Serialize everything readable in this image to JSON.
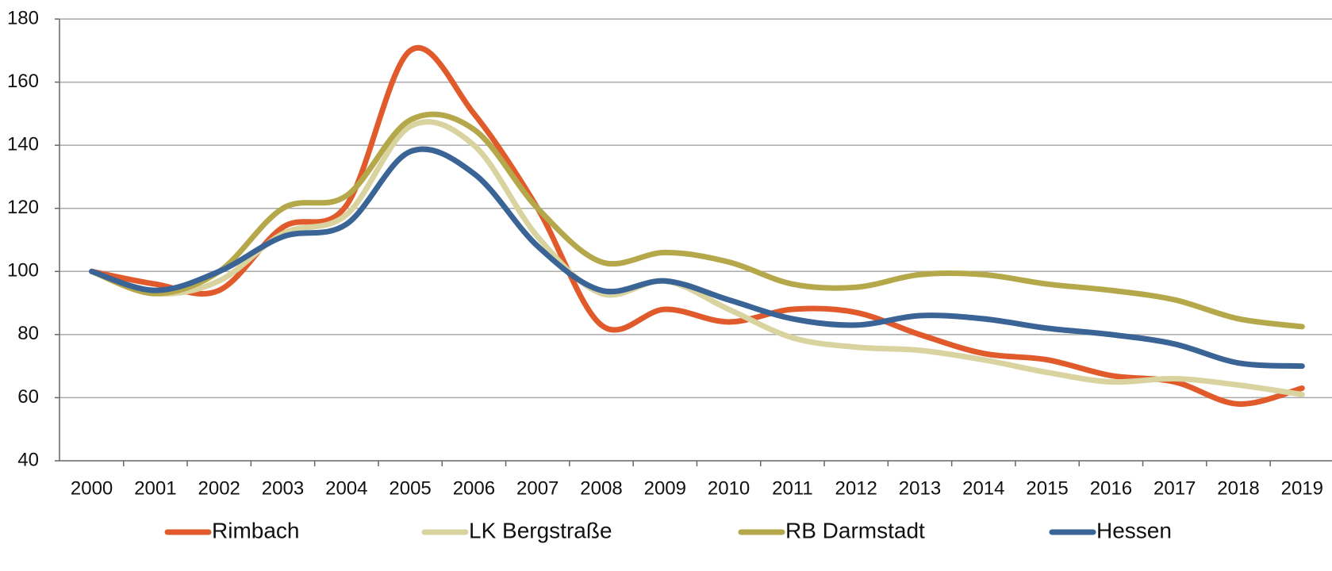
{
  "chart_data": {
    "type": "line",
    "categories": [
      "2000",
      "2001",
      "2002",
      "2003",
      "2004",
      "2005",
      "2006",
      "2007",
      "2008",
      "2009",
      "2010",
      "2011",
      "2012",
      "2013",
      "2014",
      "2015",
      "2016",
      "2017",
      "2018",
      "2019"
    ],
    "series": [
      {
        "name": "Rimbach",
        "color": "#e05a2b",
        "values": [
          100,
          96,
          94,
          114,
          121,
          170,
          150,
          120,
          83,
          88,
          84,
          88,
          87,
          80,
          74,
          72,
          67,
          65,
          58,
          63
        ]
      },
      {
        "name": "LK Bergstraße",
        "color": "#d9d3a0",
        "values": [
          100,
          93,
          97,
          112,
          118,
          146,
          140,
          111,
          93,
          97,
          88,
          79,
          76,
          75,
          72,
          68,
          65,
          66,
          64,
          61
        ]
      },
      {
        "name": "RB Darmstadt",
        "color": "#b5a84a",
        "values": [
          100,
          93,
          100,
          120,
          124,
          148,
          145,
          120,
          103,
          106,
          103,
          96,
          95,
          99,
          99,
          96,
          94,
          91,
          85,
          82.5
        ]
      },
      {
        "name": "Hessen",
        "color": "#3a6496",
        "values": [
          100,
          94,
          100,
          111,
          115,
          138,
          131,
          108,
          94,
          97,
          91,
          85,
          83,
          86,
          85,
          82,
          80,
          77,
          71,
          70
        ]
      }
    ],
    "ylim": [
      40,
      180
    ],
    "yticks": [
      40,
      60,
      80,
      100,
      120,
      140,
      160,
      180
    ],
    "grid": true
  }
}
